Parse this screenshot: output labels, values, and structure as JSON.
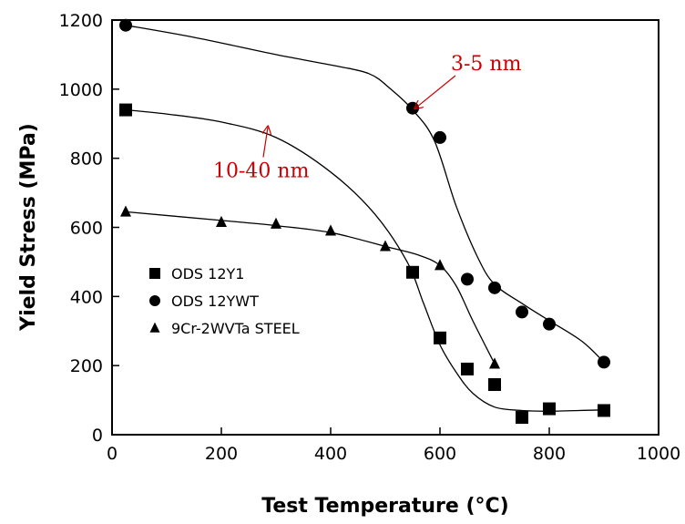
{
  "chart_data": {
    "type": "scatter",
    "xlabel": "Test Temperature (°C)",
    "ylabel": "Yield Stress (MPa)",
    "xlim": [
      0,
      1000
    ],
    "ylim": [
      0,
      1200
    ],
    "xticks": [
      0,
      200,
      400,
      600,
      800,
      1000
    ],
    "yticks": [
      0,
      200,
      400,
      600,
      800,
      1000,
      1200
    ],
    "x_tick_labels": [
      "0",
      "200",
      "400",
      "600",
      "800",
      "1000"
    ],
    "y_tick_labels": [
      "0",
      "200",
      "400",
      "600",
      "800",
      "1000",
      "1200"
    ],
    "grid": false,
    "legend_position": "lower-left",
    "series": [
      {
        "name": "ODS 12Y1",
        "marker": "square",
        "points": [
          [
            25,
            940
          ],
          [
            550,
            470
          ],
          [
            600,
            280
          ],
          [
            650,
            190
          ],
          [
            700,
            145
          ],
          [
            750,
            50
          ],
          [
            800,
            75
          ],
          [
            900,
            70
          ]
        ],
        "curve": [
          [
            25,
            940
          ],
          [
            100,
            928
          ],
          [
            200,
            905
          ],
          [
            300,
            860
          ],
          [
            400,
            760
          ],
          [
            480,
            640
          ],
          [
            540,
            500
          ],
          [
            570,
            380
          ],
          [
            600,
            260
          ],
          [
            630,
            180
          ],
          [
            660,
            120
          ],
          [
            700,
            80
          ],
          [
            750,
            70
          ],
          [
            800,
            68
          ],
          [
            900,
            72
          ]
        ]
      },
      {
        "name": "ODS 12YWT",
        "marker": "circle",
        "points": [
          [
            25,
            1185
          ],
          [
            550,
            945
          ],
          [
            600,
            860
          ],
          [
            650,
            450
          ],
          [
            700,
            425
          ],
          [
            750,
            355
          ],
          [
            800,
            320
          ],
          [
            900,
            210
          ]
        ],
        "curve": [
          [
            25,
            1185
          ],
          [
            150,
            1150
          ],
          [
            300,
            1100
          ],
          [
            400,
            1070
          ],
          [
            470,
            1045
          ],
          [
            510,
            1000
          ],
          [
            550,
            940
          ],
          [
            590,
            850
          ],
          [
            630,
            660
          ],
          [
            670,
            510
          ],
          [
            700,
            435
          ],
          [
            750,
            380
          ],
          [
            800,
            330
          ],
          [
            860,
            270
          ],
          [
            900,
            210
          ]
        ]
      },
      {
        "name": "9Cr-2WVTa STEEL",
        "marker": "triangle",
        "points": [
          [
            25,
            645
          ],
          [
            200,
            615
          ],
          [
            300,
            610
          ],
          [
            400,
            590
          ],
          [
            500,
            545
          ],
          [
            600,
            490
          ],
          [
            700,
            205
          ]
        ],
        "curve": [
          [
            25,
            645
          ],
          [
            200,
            620
          ],
          [
            300,
            605
          ],
          [
            400,
            585
          ],
          [
            500,
            545
          ],
          [
            560,
            520
          ],
          [
            600,
            490
          ],
          [
            630,
            430
          ],
          [
            660,
            330
          ],
          [
            700,
            205
          ]
        ]
      }
    ],
    "annotations": [
      {
        "text": "3-5 nm",
        "x": 620,
        "y": 1055,
        "arrow_to": [
          555,
          945
        ]
      },
      {
        "text": "10-40 nm",
        "x": 185,
        "y": 745,
        "arrow_to": [
          285,
          890
        ]
      }
    ]
  }
}
